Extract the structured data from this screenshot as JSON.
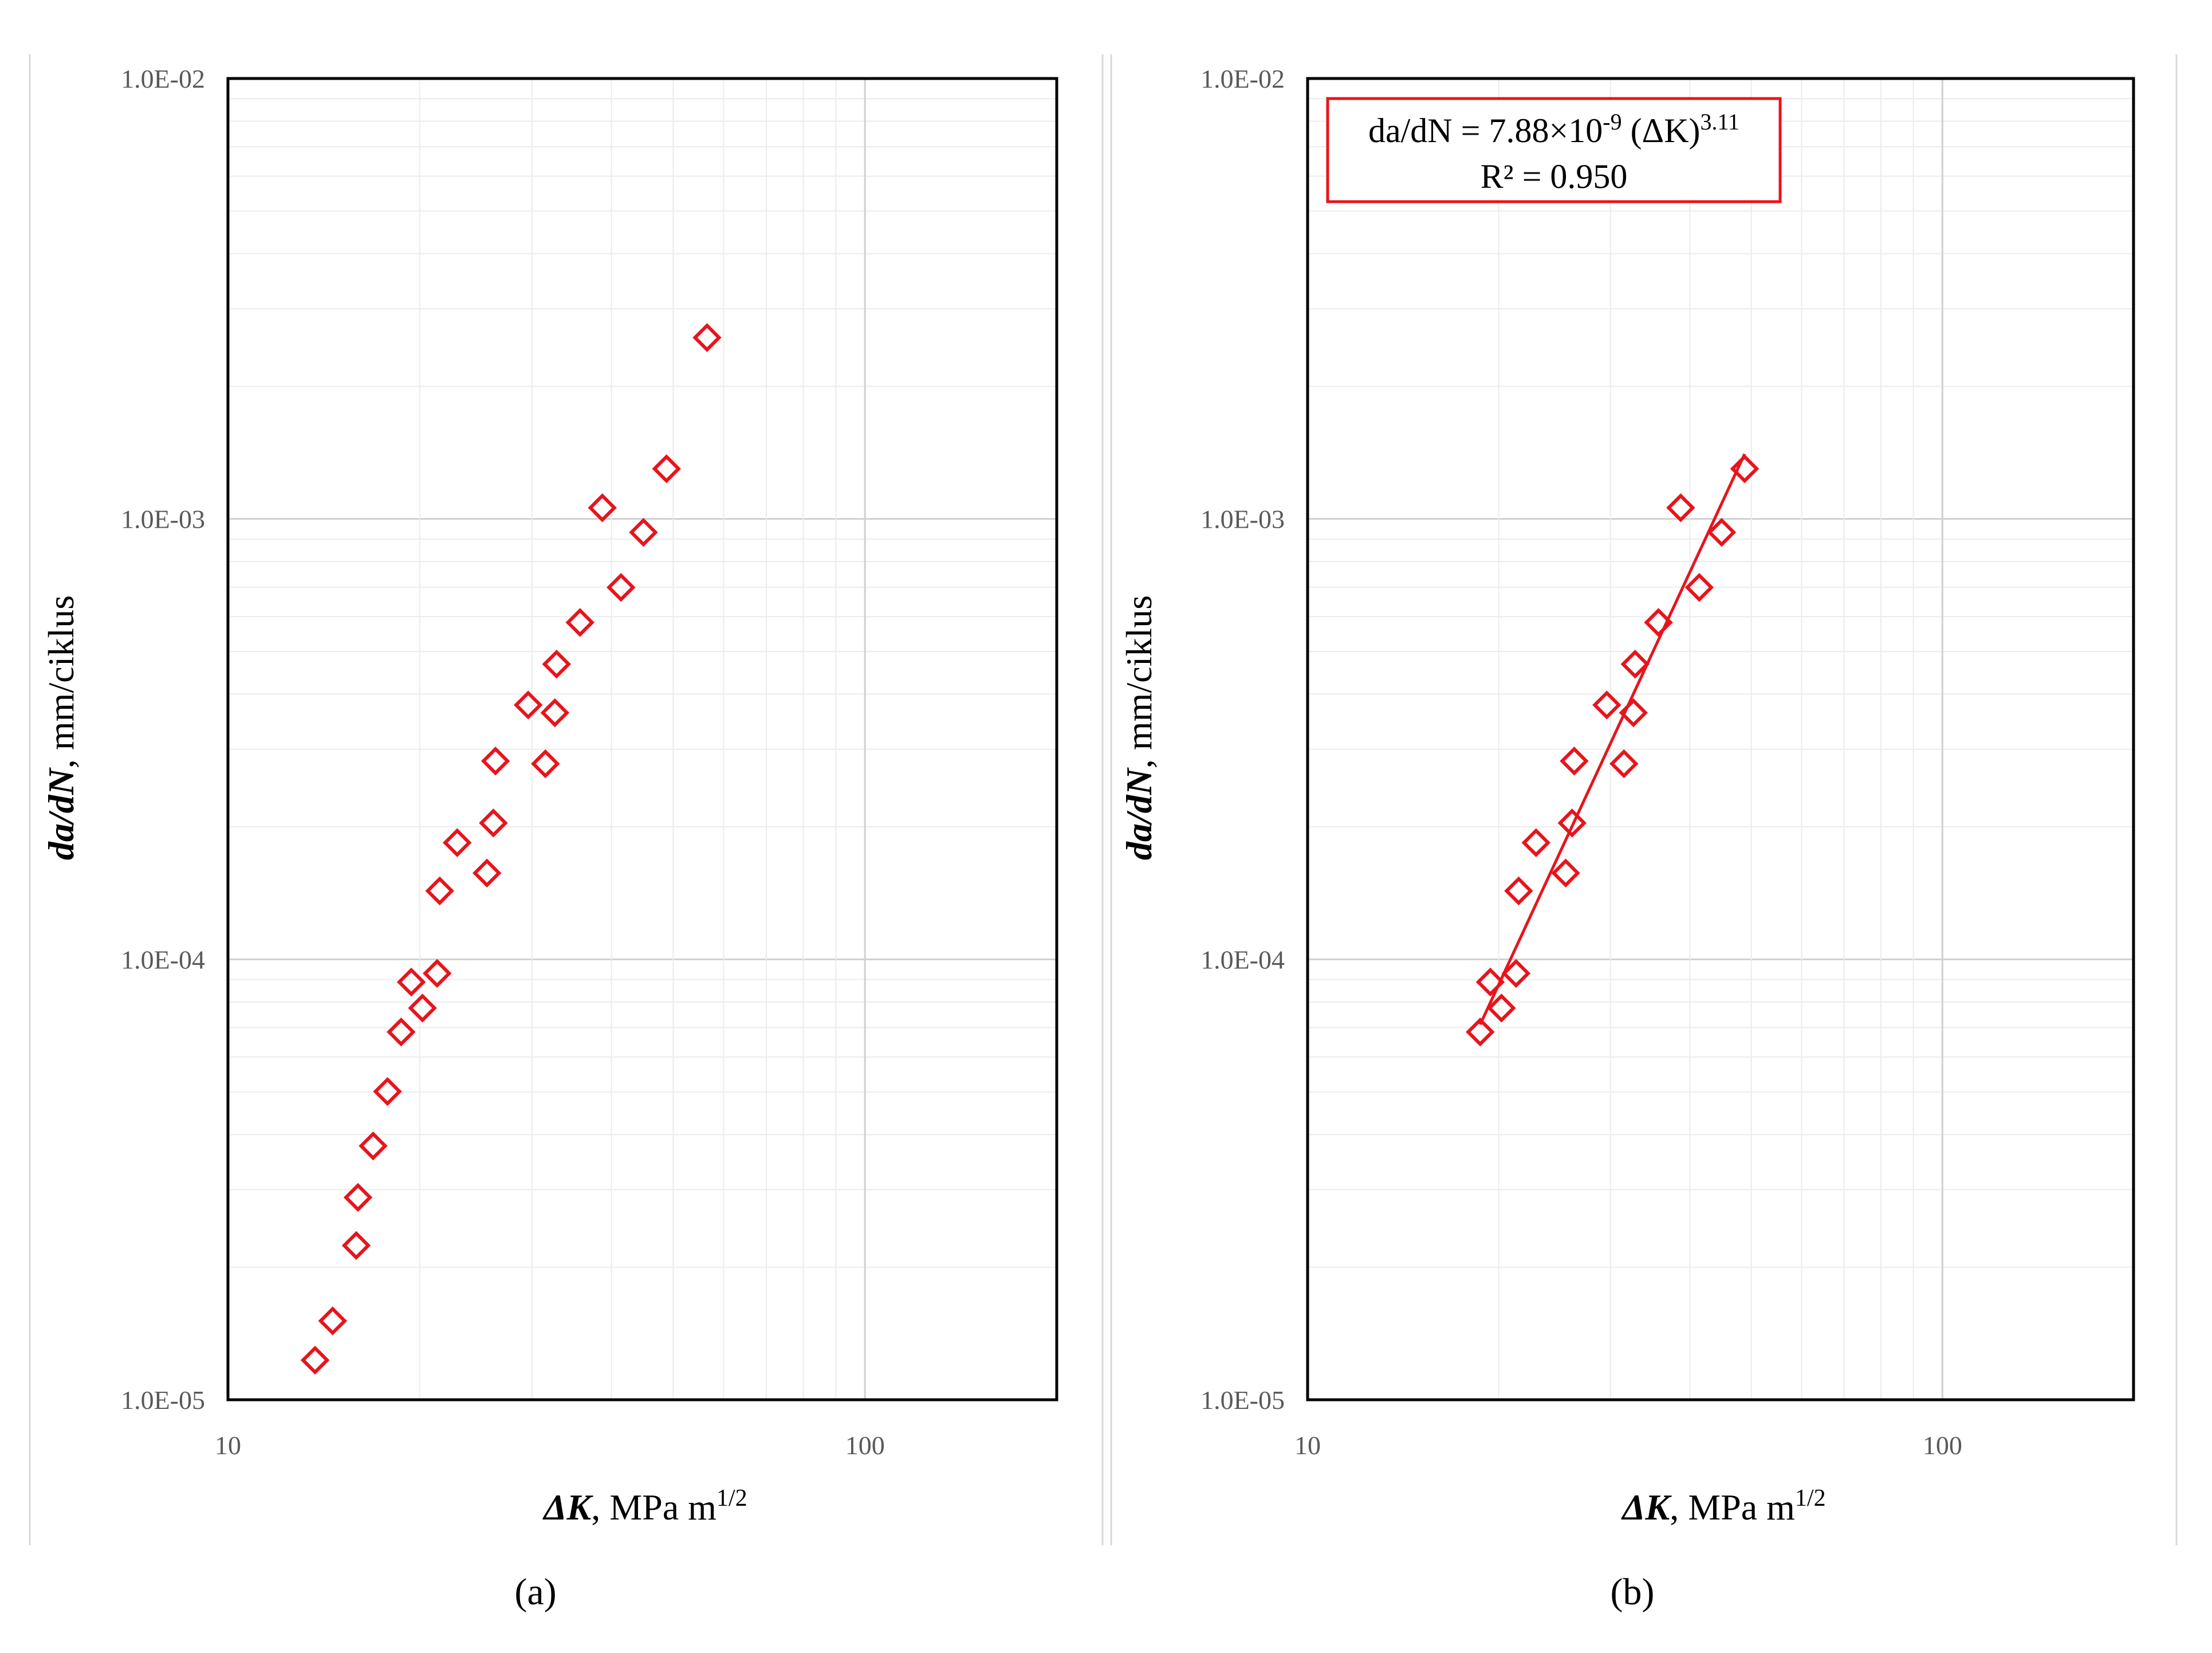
{
  "chart_data": [
    {
      "type": "scatter",
      "panel": "a",
      "caption": "(a)",
      "xlabel_main": "ΔK",
      "xlabel_units": "MPa m",
      "xlabel_exp": "1/2",
      "ylabel_main": "da/dN",
      "ylabel_units": "mm/ciklus",
      "x_scale": "log",
      "y_scale": "log",
      "xlim": [
        10,
        200
      ],
      "ylim": [
        1e-05,
        0.01
      ],
      "x_ticks": [
        "10",
        "100"
      ],
      "y_ticks": [
        "1.0E-02",
        "1.0E-03",
        "1.0E-04",
        "1.0E-05"
      ],
      "grid": true,
      "marker": "diamond-open",
      "color": "#e8141c",
      "series": [
        {
          "x": [
            13.7,
            14.6,
            15.9,
            16.0,
            16.9,
            17.8,
            18.7,
            19.4,
            20.2,
            21.3,
            21.5,
            22.9,
            25.5,
            26.1,
            26.3,
            29.6,
            31.5,
            32.6,
            32.8,
            35.7,
            38.7,
            41.4,
            44.9,
            48.8,
            56.5
          ],
          "y": [
            1.23e-05,
            1.51e-05,
            2.24e-05,
            2.88e-05,
            3.77e-05,
            5.01e-05,
            6.84e-05,
            8.88e-05,
            7.75e-05,
            9.29e-05,
            0.000143,
            0.000184,
            0.000157,
            0.000204,
            0.000282,
            0.000378,
            0.000278,
            0.000363,
            0.000468,
            0.000582,
            0.00106,
            0.000699,
            0.000932,
            0.0013,
            0.00258
          ]
        }
      ]
    },
    {
      "type": "scatter",
      "panel": "b",
      "caption": "(b)",
      "xlabel_main": "ΔK",
      "xlabel_units": "MPa m",
      "xlabel_exp": "1/2",
      "ylabel_main": "da/dN",
      "ylabel_units": "mm/ciklus",
      "x_scale": "log",
      "y_scale": "log",
      "xlim": [
        10,
        200
      ],
      "ylim": [
        1e-05,
        0.01
      ],
      "x_ticks": [
        "10",
        "100"
      ],
      "y_ticks": [
        "1.0E-02",
        "1.0E-03",
        "1.0E-04",
        "1.0E-05"
      ],
      "grid": true,
      "marker": "diamond-open",
      "color": "#e8141c",
      "annotation": {
        "line1_prefix": "da/dN = 7.88×10",
        "line1_exp1": "-9",
        "line1_mid": " (ΔK)",
        "line1_exp2": "3.11",
        "line2": "R² = 0.950"
      },
      "trendline": {
        "type": "power",
        "a": 7.88e-09,
        "b": 3.11,
        "x_range": [
          18.7,
          48.8
        ]
      },
      "series": [
        {
          "x": [
            18.7,
            19.4,
            20.2,
            21.3,
            21.5,
            22.9,
            25.5,
            26.1,
            26.3,
            29.6,
            31.5,
            32.6,
            32.8,
            35.7,
            38.7,
            41.4,
            44.9,
            48.8
          ],
          "y": [
            6.84e-05,
            8.88e-05,
            7.75e-05,
            9.29e-05,
            0.000143,
            0.000184,
            0.000157,
            0.000204,
            0.000282,
            0.000378,
            0.000278,
            0.000363,
            0.000468,
            0.000582,
            0.00106,
            0.000699,
            0.000932,
            0.0013
          ]
        }
      ]
    }
  ]
}
